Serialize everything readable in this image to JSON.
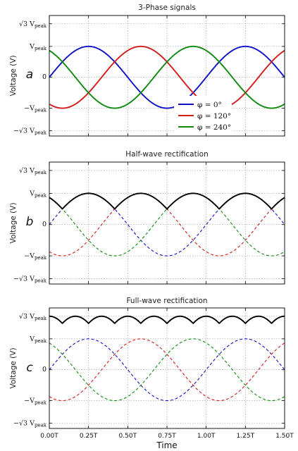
{
  "chart_data": [
    {
      "type": "line",
      "letter": "a",
      "title": "3-Phase signals",
      "ylabel": "Voltage (V)",
      "xlim": [
        0,
        1.5
      ],
      "ylim": [
        -1.9,
        2.0
      ],
      "yticks": [
        {
          "value": 1.732,
          "label": "√3 V_peak"
        },
        {
          "value": 1,
          "label": "V_peak"
        },
        {
          "value": 0,
          "label": "0"
        },
        {
          "value": -1,
          "label": "−V_peak"
        },
        {
          "value": -1.732,
          "label": "−√3 V_peak"
        }
      ],
      "grid": true,
      "legend": "lower-right",
      "series": [
        {
          "name": "φ = 0°",
          "phase_deg": 0,
          "color": "#1010c8",
          "style": "solid"
        },
        {
          "name": "φ = 120°",
          "phase_deg": 120,
          "color": "#d41c1c",
          "style": "solid"
        },
        {
          "name": "φ = 240°",
          "phase_deg": 240,
          "color": "#0f8a0f",
          "style": "solid"
        }
      ]
    },
    {
      "type": "line",
      "letter": "b",
      "title": "Half-wave rectification",
      "ylabel": "Voltage (V)",
      "xlim": [
        0,
        1.5
      ],
      "ylim": [
        -1.9,
        2.0
      ],
      "yticks": [
        {
          "value": 1.732,
          "label": "√3 V_peak"
        },
        {
          "value": 1,
          "label": "V_peak"
        },
        {
          "value": 0,
          "label": "0"
        },
        {
          "value": -1,
          "label": "−V_peak"
        },
        {
          "value": -1.732,
          "label": "−√3 V_peak"
        }
      ],
      "grid": true,
      "series": [
        {
          "phase_deg": 0,
          "color": "#1010c8",
          "style": "dashed"
        },
        {
          "phase_deg": 120,
          "color": "#d41c1c",
          "style": "dashed"
        },
        {
          "phase_deg": 240,
          "color": "#0f8a0f",
          "style": "dashed"
        },
        {
          "kind": "max",
          "color": "#000000",
          "style": "solid"
        }
      ]
    },
    {
      "type": "line",
      "letter": "c",
      "title": "Full-wave rectification",
      "ylabel": "Voltage (V)",
      "xlabel": "Time",
      "xlim": [
        0,
        1.5
      ],
      "ylim": [
        -1.9,
        2.0
      ],
      "yticks": [
        {
          "value": 1.732,
          "label": "√3 V_peak"
        },
        {
          "value": 1,
          "label": "V_peak"
        },
        {
          "value": 0,
          "label": "0"
        },
        {
          "value": -1,
          "label": "−V_peak"
        },
        {
          "value": -1.732,
          "label": "−√3 V_peak"
        }
      ],
      "xticks": [
        {
          "value": 0,
          "label": "0.00T"
        },
        {
          "value": 0.25,
          "label": "0.25T"
        },
        {
          "value": 0.5,
          "label": "0.50T"
        },
        {
          "value": 0.75,
          "label": "0.75T"
        },
        {
          "value": 1.0,
          "label": "1.00T"
        },
        {
          "value": 1.25,
          "label": "1.25T"
        },
        {
          "value": 1.5,
          "label": "1.50T"
        }
      ],
      "grid": true,
      "series": [
        {
          "phase_deg": 0,
          "color": "#1010c8",
          "style": "dashed"
        },
        {
          "phase_deg": 120,
          "color": "#d41c1c",
          "style": "dashed"
        },
        {
          "phase_deg": 240,
          "color": "#0f8a0f",
          "style": "dashed"
        },
        {
          "kind": "max_minus_min",
          "color": "#000000",
          "style": "solid"
        }
      ]
    }
  ]
}
